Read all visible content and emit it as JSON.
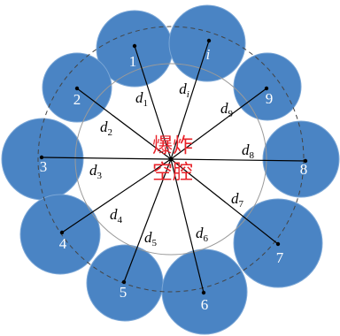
{
  "center_label": {
    "line1": "爆炸",
    "line2": "空腔"
  },
  "holes": [
    {
      "label": "1"
    },
    {
      "label": "2"
    },
    {
      "label": "3"
    },
    {
      "label": "4"
    },
    {
      "label": "5"
    },
    {
      "label": "6"
    },
    {
      "label": "7"
    },
    {
      "label": "8"
    },
    {
      "label": "9"
    },
    {
      "label": "i"
    }
  ],
  "distances": [
    {
      "base": "d",
      "sub": "1"
    },
    {
      "base": "d",
      "sub": "2"
    },
    {
      "base": "d",
      "sub": "3"
    },
    {
      "base": "d",
      "sub": "4"
    },
    {
      "base": "d",
      "sub": "5"
    },
    {
      "base": "d",
      "sub": "6"
    },
    {
      "base": "d",
      "sub": "7"
    },
    {
      "base": "d",
      "sub": "8"
    },
    {
      "base": "d",
      "sub": "9"
    },
    {
      "base": "d",
      "sub": "i"
    }
  ],
  "colors": {
    "hole_fill": "#4a84c4",
    "hole_label": "#ffffff",
    "center_text": "#e8232a",
    "ray": "#000000",
    "inner_circle": "#9a9a9a",
    "dashed_circle": "#444444"
  }
}
